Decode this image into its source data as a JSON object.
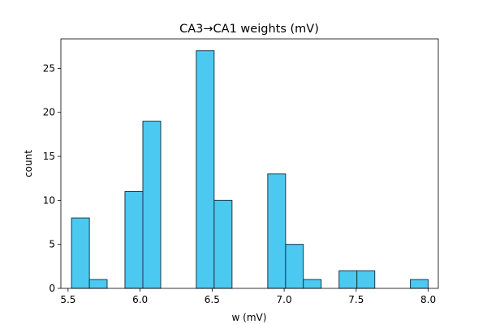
{
  "chart_data": {
    "type": "bar",
    "subtype": "histogram",
    "title": "CA3→CA1 weights (mV)",
    "xlabel": "w (mV)",
    "ylabel": "count",
    "xlim": [
      5.45,
      8.07
    ],
    "ylim": [
      0,
      28.35
    ],
    "x_ticks": [
      5.5,
      6.0,
      6.5,
      7.0,
      7.5,
      8.0
    ],
    "x_tick_labels": [
      "5.5",
      "6.0",
      "6.5",
      "7.0",
      "7.5",
      "8.0"
    ],
    "y_ticks": [
      0,
      5,
      10,
      15,
      20,
      25
    ],
    "y_tick_labels": [
      "0",
      "5",
      "10",
      "15",
      "20",
      "25"
    ],
    "grid": false,
    "bar_color": "#4cc9f0",
    "edge_color": "#1a3a4a",
    "bins": [
      {
        "x0": 5.524,
        "x1": 5.648,
        "count": 8
      },
      {
        "x0": 5.648,
        "x1": 5.771,
        "count": 1
      },
      {
        "x0": 5.771,
        "x1": 5.895,
        "count": 0
      },
      {
        "x0": 5.895,
        "x1": 6.019,
        "count": 11
      },
      {
        "x0": 6.019,
        "x1": 6.143,
        "count": 19
      },
      {
        "x0": 6.143,
        "x1": 6.267,
        "count": 0
      },
      {
        "x0": 6.267,
        "x1": 6.39,
        "count": 0
      },
      {
        "x0": 6.39,
        "x1": 6.514,
        "count": 27
      },
      {
        "x0": 6.514,
        "x1": 6.638,
        "count": 10
      },
      {
        "x0": 6.638,
        "x1": 6.762,
        "count": 0
      },
      {
        "x0": 6.762,
        "x1": 6.886,
        "count": 0
      },
      {
        "x0": 6.886,
        "x1": 7.01,
        "count": 13
      },
      {
        "x0": 7.01,
        "x1": 7.133,
        "count": 5
      },
      {
        "x0": 7.133,
        "x1": 7.257,
        "count": 1
      },
      {
        "x0": 7.257,
        "x1": 7.381,
        "count": 0
      },
      {
        "x0": 7.381,
        "x1": 7.505,
        "count": 2
      },
      {
        "x0": 7.505,
        "x1": 7.629,
        "count": 2
      },
      {
        "x0": 7.629,
        "x1": 7.752,
        "count": 0
      },
      {
        "x0": 7.752,
        "x1": 7.876,
        "count": 0
      },
      {
        "x0": 7.876,
        "x1": 8.0,
        "count": 1
      }
    ]
  }
}
